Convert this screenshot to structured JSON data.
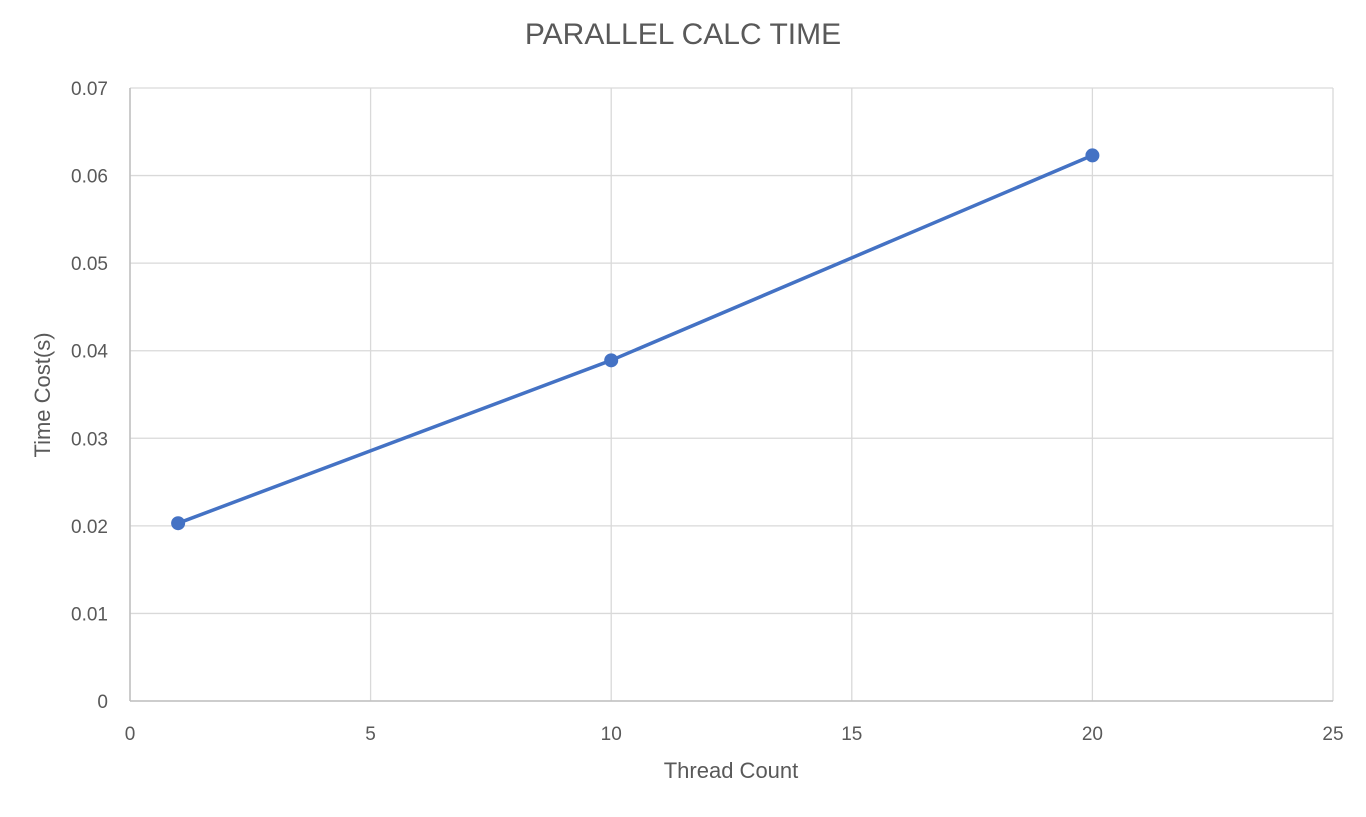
{
  "chart_data": {
    "type": "scatter",
    "title": "PARALLEL CALC TIME",
    "xlabel": "Thread Count",
    "ylabel": "Time Cost(s)",
    "xlim": [
      0,
      25
    ],
    "ylim": [
      0,
      0.07
    ],
    "x_ticks": [
      "0",
      "5",
      "10",
      "15",
      "20",
      "25"
    ],
    "y_ticks": [
      "0",
      "0.01",
      "0.02",
      "0.03",
      "0.04",
      "0.05",
      "0.06",
      "0.07"
    ],
    "grid": true,
    "legend": "none",
    "series": [
      {
        "x": [
          1,
          10,
          20
        ],
        "y": [
          0.0203,
          0.0389,
          0.0623
        ],
        "color": "#4472C4",
        "mode": "lines+markers"
      }
    ],
    "colors": {
      "series": "#4472C4",
      "grid": "#d9d9d9",
      "text": "#595959",
      "title": "#595959"
    }
  }
}
